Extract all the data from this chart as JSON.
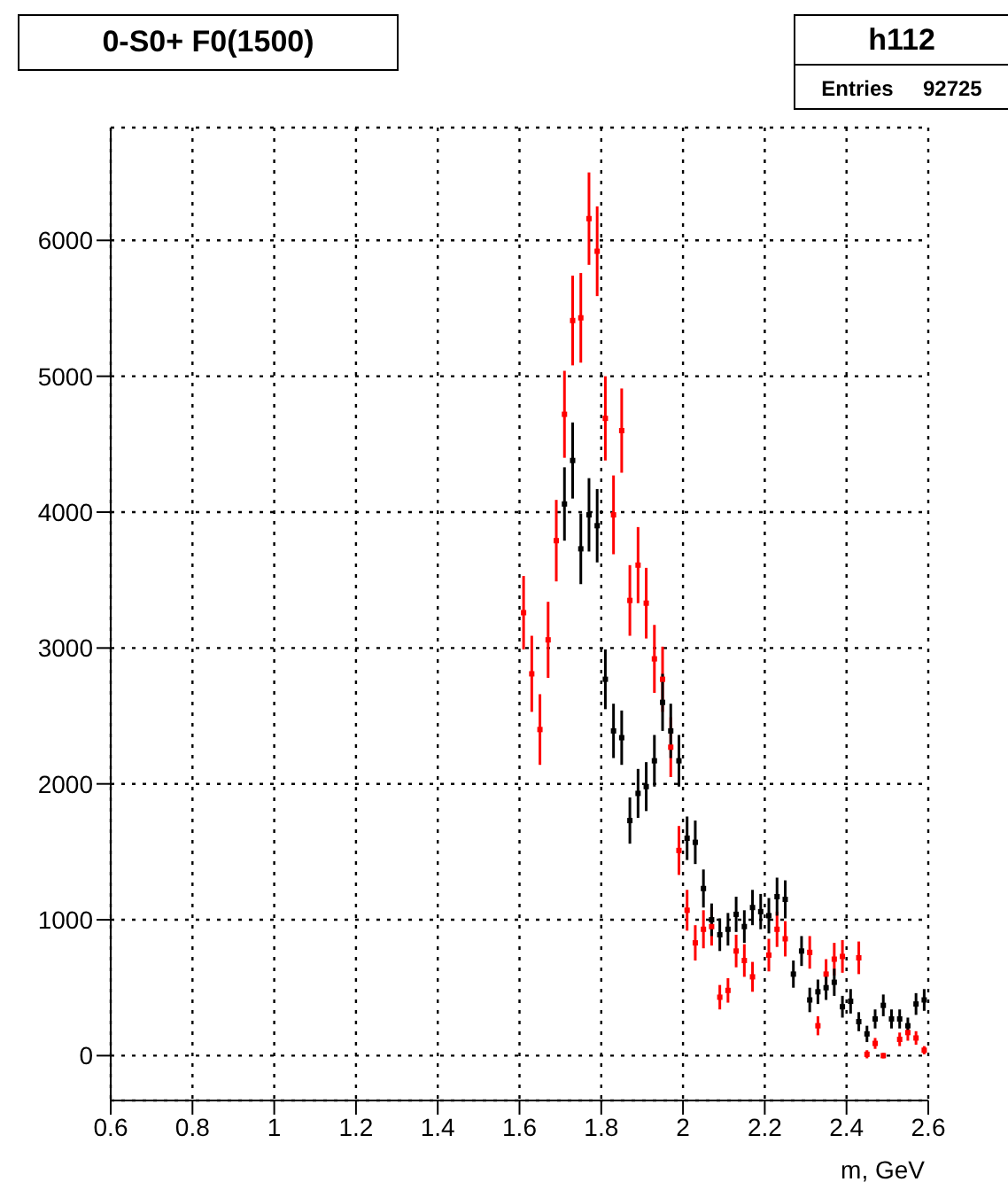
{
  "chart_data": {
    "type": "scatter",
    "title": "0-S0+ F0(1500)",
    "xlabel": "m, GeV",
    "annotations": [
      "h112",
      "Entries 92725"
    ],
    "xlim": [
      0.6,
      2.6
    ],
    "xticks": [
      0.6,
      0.8,
      1,
      1.2,
      1.4,
      1.6,
      1.8,
      2,
      2.2,
      2.4,
      2.6
    ],
    "ylim": [
      -330,
      6830
    ],
    "yticks": [
      0,
      1000,
      2000,
      3000,
      4000,
      5000,
      6000
    ],
    "grid": true,
    "legend": false,
    "marker": "square",
    "series": [
      {
        "color": "#ff0000",
        "x": [
          1.61,
          1.63,
          1.65,
          1.67,
          1.69,
          1.71,
          1.73,
          1.75,
          1.77,
          1.79,
          1.81,
          1.83,
          1.85,
          1.87,
          1.89,
          1.91,
          1.93,
          1.95,
          1.97,
          1.99,
          2.01,
          2.03,
          2.05,
          2.07,
          2.09,
          2.11,
          2.13,
          2.15,
          2.17,
          2.19,
          2.21,
          2.23,
          2.25,
          2.27,
          2.29,
          2.31,
          2.33,
          2.35,
          2.37,
          2.39,
          2.41,
          2.43,
          2.45,
          2.47,
          2.49,
          2.51,
          2.53,
          2.55,
          2.57,
          2.59
        ],
        "values": [
          3260,
          2810,
          2400,
          3060,
          3790,
          4720,
          5410,
          5430,
          6160,
          5920,
          4690,
          3980,
          4600,
          3350,
          3610,
          3330,
          2920,
          2770,
          2270,
          1510,
          1070,
          830,
          930,
          950,
          430,
          480,
          770,
          700,
          580,
          null,
          740,
          930,
          860,
          null,
          null,
          760,
          220,
          600,
          710,
          730,
          null,
          720,
          10,
          90,
          0,
          null,
          120,
          170,
          130,
          40
        ],
        "errors": [
          270,
          280,
          260,
          280,
          300,
          320,
          330,
          330,
          340,
          330,
          310,
          290,
          310,
          260,
          280,
          260,
          250,
          240,
          220,
          180,
          150,
          130,
          140,
          140,
          90,
          90,
          120,
          120,
          110,
          null,
          120,
          130,
          130,
          null,
          null,
          120,
          70,
          110,
          120,
          120,
          null,
          120,
          30,
          40,
          20,
          null,
          50,
          60,
          50,
          30
        ]
      },
      {
        "color": "#000000",
        "x": [
          1.71,
          1.73,
          1.75,
          1.77,
          1.79,
          1.81,
          1.83,
          1.85,
          1.87,
          1.89,
          1.91,
          1.93,
          1.95,
          1.97,
          1.99,
          2.01,
          2.03,
          2.05,
          2.07,
          2.09,
          2.11,
          2.13,
          2.15,
          2.17,
          2.19,
          2.21,
          2.23,
          2.25,
          2.27,
          2.29,
          2.31,
          2.33,
          2.35,
          2.37,
          2.39,
          2.41,
          2.43,
          2.45,
          2.47,
          2.49,
          2.51,
          2.53,
          2.55,
          2.57,
          2.59
        ],
        "values": [
          4060,
          4380,
          3730,
          3980,
          3900,
          2770,
          2390,
          2340,
          1730,
          1930,
          1980,
          2170,
          2600,
          2390,
          2170,
          1600,
          1570,
          1230,
          1000,
          890,
          930,
          1040,
          950,
          1090,
          1060,
          1030,
          1170,
          1150,
          600,
          770,
          410,
          470,
          500,
          540,
          360,
          400,
          250,
          160,
          270,
          370,
          270,
          270,
          220,
          380,
          410
        ],
        "errors": [
          270,
          280,
          260,
          270,
          270,
          220,
          200,
          200,
          170,
          180,
          180,
          190,
          210,
          200,
          190,
          160,
          160,
          140,
          120,
          120,
          120,
          130,
          120,
          130,
          130,
          130,
          140,
          140,
          100,
          110,
          90,
          90,
          90,
          100,
          80,
          90,
          70,
          60,
          70,
          80,
          70,
          70,
          60,
          80,
          80
        ]
      }
    ]
  }
}
